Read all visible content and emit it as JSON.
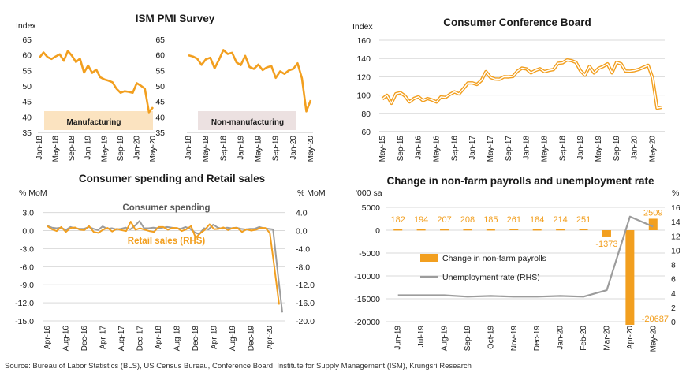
{
  "colors": {
    "orange": "#F29F1F",
    "gray": "#9C9C9C",
    "grid": "#D9D9D9",
    "axis": "#BFBFBF",
    "mfgBox": "#FBE3C0",
    "nonmfgBox": "#ECE1E1",
    "navy": "#1F2A44"
  },
  "source": "Source: Bureau of Labor Statistics (BLS), US Census Bureau, Conference Board, Institute for Supply Management (ISM), Krungsri Research",
  "chart_data": [
    {
      "id": "ism",
      "type": "line",
      "title": "ISM PMI Survey",
      "ylabel": "Index",
      "ylim": [
        35,
        65
      ],
      "yticks": [
        35,
        40,
        45,
        50,
        55,
        60,
        65
      ],
      "xticks": [
        "Jan-18",
        "May-18",
        "Sep-18",
        "Jan-19",
        "May-19",
        "Sep-19",
        "Jan-20",
        "May-20"
      ],
      "series": [
        {
          "name": "Manufacturing",
          "values": [
            59.1,
            60.8,
            59.3,
            58.7,
            59.5,
            60.2,
            58.1,
            61.3,
            59.8,
            57.7,
            58.8,
            54.3,
            56.6,
            54.2,
            55.3,
            52.8,
            52.1,
            51.7,
            51.2,
            49.1,
            47.8,
            48.3,
            48.1,
            47.8,
            50.9,
            50.1,
            49.1,
            41.5,
            43.1
          ]
        },
        {
          "name": "Non-manufacturing",
          "values": [
            59.9,
            59.5,
            58.8,
            56.8,
            58.6,
            59.1,
            55.7,
            58.5,
            61.6,
            60.3,
            60.7,
            57.6,
            56.7,
            59.7,
            56.1,
            55.5,
            56.9,
            55.1,
            56.0,
            56.4,
            52.6,
            54.7,
            53.9,
            55.0,
            55.5,
            57.3,
            52.5,
            41.8,
            45.4
          ]
        }
      ]
    },
    {
      "id": "cb",
      "type": "line",
      "title": "Consumer Conference Board",
      "ylabel": "Index",
      "ylim": [
        60,
        160
      ],
      "yticks": [
        60,
        80,
        100,
        120,
        140,
        160
      ],
      "xticks": [
        "May-15",
        "Sep-15",
        "Jan-16",
        "May-16",
        "Sep-16",
        "Jan-17",
        "May-17",
        "Sep-17",
        "Jan-18",
        "May-18",
        "Sep-18",
        "Jan-19",
        "May-19",
        "Sep-19",
        "Jan-20",
        "May-20"
      ],
      "series": [
        {
          "name": "",
          "values": [
            95.8,
            99.8,
            91.0,
            101.5,
            102.6,
            99.1,
            92.6,
            96.3,
            98.1,
            94.0,
            96.2,
            94.7,
            92.4,
            98.0,
            97.4,
            100.8,
            103.5,
            101.3,
            107.1,
            113.3,
            113.3,
            111.6,
            116.1,
            125.6,
            119.4,
            117.6,
            117.3,
            120.0,
            119.8,
            120.4,
            126.2,
            129.5,
            128.6,
            124.3,
            127.0,
            128.8,
            125.6,
            127.1,
            127.9,
            134.7,
            135.3,
            138.4,
            137.7,
            135.7,
            126.6,
            121.7,
            131.4,
            124.2,
            129.2,
            131.3,
            134.1,
            124.3,
            135.8,
            134.2,
            126.3,
            126.1,
            126.8,
            128.2,
            130.4,
            132.6,
            118.8,
            85.7,
            86.6
          ]
        }
      ]
    },
    {
      "id": "retail",
      "type": "line",
      "title": "Consumer spending and Retail sales",
      "ylabel": "% MoM",
      "ylabel_right": "% MoM",
      "ylim": [
        -15,
        4
      ],
      "yticks": [
        "3.0",
        "0.0",
        "-3.0",
        "-6.0",
        "-9.0",
        "-12.0",
        "-15.0"
      ],
      "ylim_right": [
        -20,
        5.33
      ],
      "yticks_right": [
        "4.0",
        "0.0",
        "-4.0",
        "-8.0",
        "-12.0",
        "-16.0",
        "-20.0"
      ],
      "xticks": [
        "Apr-16",
        "Aug-16",
        "Dec-16",
        "Apr-17",
        "Aug-17",
        "Dec-17",
        "Apr-18",
        "Aug-18",
        "Dec-18",
        "Apr-19",
        "Aug-19",
        "Dec-19",
        "Apr-20"
      ],
      "series": [
        {
          "name": "Consumer spending",
          "axis": "left",
          "values": [
            0.8,
            0.5,
            0.4,
            0.5,
            0.1,
            0.6,
            0.4,
            0.3,
            0.3,
            0.6,
            0.3,
            0.1,
            0.7,
            0.3,
            0.4,
            0.2,
            0.3,
            0.5,
            0.2,
            0.8,
            1.6,
            0.4,
            0.4,
            0.5,
            0.4,
            0.5,
            0.6,
            0.5,
            0.4,
            0.3,
            0.6,
            0.3,
            -0.3,
            -0.6,
            0.4,
            0.2,
            1.0,
            0.5,
            0.3,
            0.5,
            0.4,
            0.5,
            0.3,
            0.2,
            0.3,
            0.3,
            0.6,
            0.4,
            0.3,
            0.2,
            -6.9,
            -13.6
          ]
        },
        {
          "name": "Retail sales (RHS)",
          "axis": "right",
          "values": [
            1.0,
            0.3,
            -0.1,
            0.8,
            -0.3,
            0.6,
            0.7,
            0.2,
            0.1,
            1.0,
            -0.3,
            -0.5,
            0.2,
            0.6,
            -0.2,
            0.4,
            0.1,
            -0.1,
            2.0,
            0.2,
            0.5,
            0.2,
            -0.1,
            -0.3,
            0.8,
            0.8,
            0.2,
            0.6,
            0.6,
            -0.1,
            0.3,
            1.0,
            -1.6,
            -0.6,
            0.2,
            1.4,
            0.3,
            0.4,
            0.7,
            0.1,
            0.6,
            0.6,
            -0.3,
            0.3,
            0.0,
            0.2,
            0.6,
            0.6,
            -0.5,
            -8.3,
            -16.4
          ]
        }
      ]
    },
    {
      "id": "nfp",
      "type": "bar",
      "title": "Change in non-farm payrolls and unemployment rate",
      "ylabel": "'000 sa",
      "ylabel_right": "%",
      "ylim": [
        -20000,
        5000
      ],
      "yticks": [
        "5000",
        "0",
        "-5000",
        "-10000",
        "-15000",
        "-20000"
      ],
      "ylim_right": [
        0,
        16
      ],
      "yticks_right": [
        "16",
        "14",
        "12",
        "10",
        "8",
        "6",
        "4",
        "2",
        "0"
      ],
      "categories": [
        "Jun-19",
        "Jul-19",
        "Aug-19",
        "Sep-19",
        "Oct-19",
        "Nov-19",
        "Dec-19",
        "Jan-20",
        "Feb-20",
        "Mar-20",
        "Apr-20",
        "May-20"
      ],
      "series": [
        {
          "name": "Change in non-farm payrolls",
          "values": [
            182,
            194,
            207,
            208,
            185,
            261,
            184,
            214,
            251,
            -1373,
            -20687,
            2509
          ],
          "labels": [
            "182",
            "194",
            "207",
            "208",
            "185",
            "261",
            "184",
            "214",
            "251",
            "-1373",
            "-20687",
            "2509"
          ]
        },
        {
          "name": "Unemployment rate (RHS)",
          "values": [
            3.7,
            3.7,
            3.7,
            3.5,
            3.6,
            3.5,
            3.5,
            3.6,
            3.5,
            4.4,
            14.7,
            13.3
          ]
        }
      ]
    }
  ]
}
